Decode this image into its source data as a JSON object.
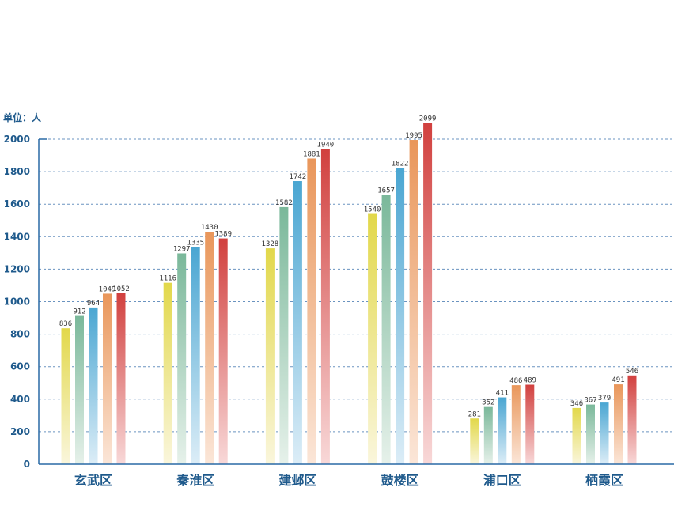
{
  "chart_data": {
    "type": "bar",
    "unit_label": "单位：人",
    "categories": [
      "玄武区",
      "秦淮区",
      "建邺区",
      "鼓楼区",
      "浦口区",
      "栖霞区"
    ],
    "series": [
      {
        "values": [
          836,
          1116,
          1328,
          1540,
          281,
          346
        ],
        "color_top": "#e2d84a",
        "color_bottom": "#faf6dc"
      },
      {
        "values": [
          912,
          1297,
          1582,
          1657,
          352,
          367
        ],
        "color_top": "#7ab89a",
        "color_bottom": "#e6f1ea"
      },
      {
        "values": [
          964,
          1335,
          1742,
          1822,
          411,
          379
        ],
        "color_top": "#4aa6d2",
        "color_bottom": "#dcedf7"
      },
      {
        "values": [
          1049,
          1430,
          1881,
          1995,
          486,
          491
        ],
        "color_top": "#e9965a",
        "color_bottom": "#fbe6d8"
      },
      {
        "values": [
          1052,
          1389,
          1940,
          2099,
          489,
          546
        ],
        "color_top": "#d1403e",
        "color_bottom": "#f8d8d8"
      }
    ],
    "yticks": [
      0,
      200,
      400,
      600,
      800,
      1000,
      1200,
      1400,
      1600,
      1800,
      2000
    ],
    "ylim": [
      0,
      2000
    ],
    "grid": true,
    "colors": {
      "axis": "#2a6aa6",
      "grid": "#6a93c0",
      "text": "#1f5a8c"
    }
  }
}
